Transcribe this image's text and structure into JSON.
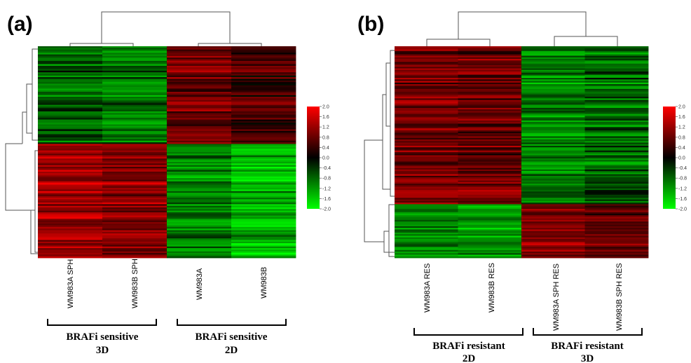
{
  "chart_data": [
    {
      "type": "heatmap",
      "panel_label": "(a)",
      "columns": [
        "WM983A SPH",
        "WM983B SPH",
        "WM983A",
        "WM983B"
      ],
      "row_blocks": [
        {
          "rows": 60,
          "values": [
            -0.7,
            -0.9,
            0.9,
            0.6
          ]
        },
        {
          "rows": 70,
          "values": [
            1.3,
            1.1,
            -1.0,
            -1.4
          ]
        }
      ],
      "color_scale": {
        "min": -2.0,
        "max": 2.0,
        "low_color": "#00ff00",
        "mid_color": "#000000",
        "high_color": "#ff0000",
        "ticks": [
          "2.0",
          "1.6",
          "1.2",
          "0.8",
          "0.4",
          "0.0",
          "-0.4",
          "-0.8",
          "-1.2",
          "-1.6",
          "-2.0"
        ]
      },
      "groups": [
        {
          "label_line1": "BRAFi sensitive",
          "label_line2": "3D",
          "columns": [
            0,
            1
          ]
        },
        {
          "label_line1": "BRAFi sensitive",
          "label_line2": "2D",
          "columns": [
            2,
            3
          ]
        }
      ]
    },
    {
      "type": "heatmap",
      "panel_label": "(b)",
      "columns": [
        "WM983A RES",
        "WM983B RES",
        "WM983A SPH RES",
        "WM983B SPH RES"
      ],
      "row_blocks": [
        {
          "rows": 100,
          "values": [
            0.9,
            0.8,
            -1.0,
            -0.8
          ]
        },
        {
          "rows": 34,
          "values": [
            -1.1,
            -1.2,
            0.9,
            0.7
          ]
        }
      ],
      "color_scale": {
        "min": -2.0,
        "max": 2.0,
        "low_color": "#00ff00",
        "mid_color": "#000000",
        "high_color": "#ff0000",
        "ticks": [
          "2.0",
          "1.6",
          "1.2",
          "0.8",
          "0.4",
          "0.0",
          "-0.4",
          "-0.8",
          "-1.2",
          "-1.6",
          "-2.0"
        ]
      },
      "groups": [
        {
          "label_line1": "BRAFi resistant",
          "label_line2": "2D",
          "columns": [
            0,
            1
          ]
        },
        {
          "label_line1": "BRAFi resistant",
          "label_line2": "3D",
          "columns": [
            2,
            3
          ]
        }
      ]
    }
  ]
}
